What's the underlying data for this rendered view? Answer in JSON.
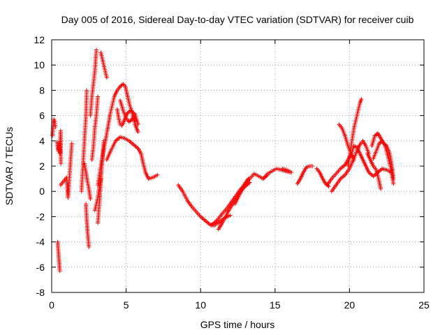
{
  "chart_data": {
    "type": "scatter",
    "title": "Day 005 of 2016, Sidereal Day-to-day VTEC variation (SDTVAR) for receiver cuib",
    "xlabel": "GPS time / hours",
    "ylabel": "SDTVAR / TECUs",
    "xlim": [
      0,
      25
    ],
    "ylim": [
      -8,
      12
    ],
    "grid": true,
    "marker": "+",
    "color": "#ff0000",
    "xticks": [
      "0",
      "5",
      "10",
      "15",
      "20",
      "25"
    ],
    "yticks": [
      "-8",
      "-6",
      "-4",
      "-2",
      "0",
      "2",
      "4",
      "6",
      "8",
      "10",
      "12"
    ],
    "tracks": [
      [
        [
          0.05,
          4.4
        ],
        [
          0.1,
          5.2
        ],
        [
          0.15,
          5.7
        ],
        [
          0.2,
          5.5
        ],
        [
          0.25,
          5.1
        ]
      ],
      [
        [
          0.35,
          3.9
        ],
        [
          0.4,
          3.5
        ],
        [
          0.45,
          3.2
        ],
        [
          0.5,
          3.8
        ],
        [
          0.55,
          3.0
        ],
        [
          0.6,
          4.8
        ],
        [
          0.62,
          2.2
        ]
      ],
      [
        [
          0.4,
          -4.0
        ],
        [
          0.45,
          -4.8
        ],
        [
          0.5,
          -5.6
        ],
        [
          0.55,
          -6.3
        ]
      ],
      [
        [
          0.6,
          0.5
        ],
        [
          1.0,
          1.1
        ],
        [
          1.05,
          0.3
        ],
        [
          1.1,
          -0.5
        ],
        [
          1.35,
          3.8
        ]
      ],
      [
        [
          2.0,
          0.0
        ],
        [
          2.1,
          2.0
        ],
        [
          2.2,
          4.0
        ],
        [
          2.3,
          6.0
        ],
        [
          2.35,
          8.0
        ]
      ],
      [
        [
          2.3,
          -1.0
        ],
        [
          2.35,
          -2.2
        ],
        [
          2.4,
          -3.0
        ],
        [
          2.45,
          -3.8
        ],
        [
          2.5,
          -4.4
        ]
      ],
      [
        [
          2.2,
          2.2
        ],
        [
          2.3,
          1.5
        ],
        [
          2.4,
          0.8
        ],
        [
          2.5,
          0.2
        ],
        [
          2.6,
          -0.6
        ]
      ],
      [
        [
          2.6,
          6.0
        ],
        [
          2.7,
          7.5
        ],
        [
          2.8,
          8.5
        ],
        [
          2.9,
          9.5
        ],
        [
          3.0,
          11.2
        ]
      ],
      [
        [
          2.7,
          2.5
        ],
        [
          2.8,
          3.5
        ],
        [
          2.9,
          5.0
        ],
        [
          3.0,
          6.0
        ],
        [
          3.1,
          7.5
        ]
      ],
      [
        [
          2.9,
          -1.5
        ],
        [
          3.0,
          -1.0
        ],
        [
          3.1,
          -0.5
        ],
        [
          3.2,
          0.3
        ],
        [
          3.3,
          1.0
        ]
      ],
      [
        [
          3.1,
          -2.5
        ],
        [
          3.2,
          -1.0
        ],
        [
          3.3,
          0.8
        ],
        [
          3.4,
          2.5
        ],
        [
          3.5,
          4.0
        ]
      ],
      [
        [
          3.3,
          11.0
        ],
        [
          3.4,
          10.5
        ],
        [
          3.5,
          10.0
        ],
        [
          3.6,
          9.5
        ],
        [
          3.7,
          9.0
        ]
      ],
      [
        [
          3.1,
          0.5
        ],
        [
          3.3,
          2.0
        ],
        [
          3.5,
          3.3
        ],
        [
          3.7,
          4.6
        ],
        [
          3.9,
          5.9
        ]
      ],
      [
        [
          3.9,
          6.0
        ],
        [
          4.1,
          7.0
        ],
        [
          4.2,
          7.5
        ],
        [
          4.4,
          8.0
        ],
        [
          4.6,
          8.3
        ],
        [
          4.8,
          8.5
        ],
        [
          4.95,
          8.3
        ],
        [
          5.1,
          7.5
        ],
        [
          5.25,
          6.8
        ],
        [
          5.4,
          6.3
        ],
        [
          5.5,
          5.8
        ],
        [
          5.6,
          5.3
        ],
        [
          5.7,
          5.0
        ],
        [
          5.8,
          4.7
        ]
      ],
      [
        [
          3.7,
          2.5
        ],
        [
          4.0,
          3.3
        ],
        [
          4.3,
          4.0
        ],
        [
          4.6,
          4.3
        ],
        [
          4.9,
          4.2
        ],
        [
          5.2,
          4.0
        ],
        [
          5.5,
          3.7
        ],
        [
          5.8,
          3.4
        ],
        [
          6.0,
          3.0
        ],
        [
          6.15,
          2.2
        ],
        [
          6.3,
          1.5
        ],
        [
          6.5,
          1.0
        ],
        [
          6.8,
          1.1
        ],
        [
          7.1,
          1.3
        ]
      ],
      [
        [
          4.6,
          7.2
        ],
        [
          4.8,
          6.4
        ],
        [
          5.0,
          5.8
        ],
        [
          5.2,
          5.5
        ],
        [
          5.4,
          5.7
        ],
        [
          5.5,
          6.0
        ],
        [
          5.6,
          5.6
        ]
      ],
      [
        [
          4.4,
          6.5
        ],
        [
          4.5,
          5.8
        ],
        [
          4.6,
          5.3
        ],
        [
          4.7,
          5.2
        ],
        [
          4.8,
          5.4
        ],
        [
          4.9,
          5.7
        ],
        [
          5.0,
          6.0
        ],
        [
          5.1,
          6.2
        ],
        [
          5.3,
          6.4
        ],
        [
          5.6,
          6.1
        ],
        [
          5.8,
          5.3
        ]
      ],
      [
        [
          8.5,
          0.5
        ],
        [
          8.8,
          0.0
        ],
        [
          9.1,
          -0.7
        ],
        [
          9.4,
          -1.2
        ],
        [
          9.7,
          -1.6
        ],
        [
          10.0,
          -2.0
        ],
        [
          10.3,
          -2.3
        ],
        [
          10.6,
          -2.6
        ],
        [
          10.9,
          -2.7
        ],
        [
          11.2,
          -2.5
        ],
        [
          11.5,
          -2.2
        ],
        [
          11.8,
          -2.0
        ],
        [
          12.0,
          -1.9
        ]
      ],
      [
        [
          10.7,
          -2.7
        ],
        [
          10.9,
          -2.5
        ],
        [
          11.1,
          -2.3
        ],
        [
          11.3,
          -2.0
        ],
        [
          11.5,
          -1.7
        ],
        [
          11.8,
          -1.3
        ],
        [
          12.1,
          -0.8
        ],
        [
          12.4,
          -0.3
        ],
        [
          12.7,
          0.2
        ],
        [
          13.0,
          0.5
        ],
        [
          13.3,
          1.0
        ],
        [
          13.6,
          1.4
        ],
        [
          13.9,
          1.2
        ],
        [
          14.2,
          1.0
        ],
        [
          14.5,
          1.3
        ]
      ],
      [
        [
          11.2,
          -3.0
        ],
        [
          11.5,
          -2.4
        ],
        [
          11.8,
          -1.7
        ],
        [
          12.1,
          -1.1
        ],
        [
          12.4,
          -0.6
        ],
        [
          12.7,
          0.0
        ],
        [
          13.0,
          0.4
        ],
        [
          13.3,
          0.7
        ]
      ],
      [
        [
          12.3,
          -1.0
        ],
        [
          12.6,
          -0.3
        ],
        [
          12.9,
          0.5
        ],
        [
          13.2,
          1.0
        ]
      ],
      [
        [
          14.2,
          1.0
        ],
        [
          14.5,
          1.4
        ],
        [
          14.8,
          1.6
        ],
        [
          15.1,
          1.8
        ],
        [
          15.4,
          1.7
        ],
        [
          15.7,
          1.6
        ],
        [
          16.0,
          1.5
        ]
      ],
      [
        [
          15.5,
          1.8
        ],
        [
          15.8,
          1.7
        ],
        [
          16.1,
          1.5
        ]
      ],
      [
        [
          16.5,
          0.6
        ],
        [
          16.7,
          1.0
        ],
        [
          16.9,
          1.5
        ],
        [
          17.1,
          1.9
        ],
        [
          17.3,
          2.0
        ],
        [
          17.5,
          2.0
        ]
      ],
      [
        [
          17.8,
          1.8
        ],
        [
          18.0,
          1.5
        ],
        [
          18.2,
          1.0
        ],
        [
          18.4,
          0.6
        ],
        [
          18.6,
          0.4
        ]
      ],
      [
        [
          18.5,
          0.5
        ],
        [
          18.8,
          1.0
        ],
        [
          19.1,
          1.4
        ],
        [
          19.4,
          1.8
        ],
        [
          19.7,
          2.1
        ],
        [
          19.9,
          2.5
        ],
        [
          20.1,
          2.9
        ],
        [
          20.3,
          3.6
        ],
        [
          20.5,
          3.5
        ],
        [
          20.7,
          3.0
        ],
        [
          20.9,
          2.5
        ],
        [
          21.1,
          2.0
        ],
        [
          21.3,
          1.5
        ],
        [
          21.6,
          1.2
        ],
        [
          21.9,
          1.5
        ],
        [
          22.2,
          1.8
        ],
        [
          22.5,
          1.7
        ],
        [
          22.8,
          1.5
        ]
      ],
      [
        [
          18.8,
          0.0
        ],
        [
          19.1,
          0.5
        ],
        [
          19.4,
          1.0
        ],
        [
          19.7,
          1.3
        ],
        [
          20.0,
          1.8
        ],
        [
          20.3,
          2.6
        ],
        [
          20.5,
          3.2
        ],
        [
          20.7,
          3.7
        ],
        [
          20.9,
          4.0
        ],
        [
          21.1,
          3.6
        ],
        [
          21.3,
          3.0
        ]
      ],
      [
        [
          19.9,
          2.0
        ],
        [
          20.1,
          3.5
        ],
        [
          20.3,
          5.0
        ],
        [
          20.5,
          6.0
        ],
        [
          20.7,
          7.0
        ],
        [
          20.8,
          7.3
        ]
      ],
      [
        [
          19.3,
          5.3
        ],
        [
          19.5,
          5.0
        ],
        [
          19.7,
          4.4
        ],
        [
          19.9,
          3.6
        ],
        [
          20.1,
          3.0
        ],
        [
          20.3,
          2.5
        ]
      ],
      [
        [
          21.2,
          3.0
        ],
        [
          21.4,
          2.5
        ],
        [
          21.6,
          2.0
        ],
        [
          21.8,
          1.7
        ],
        [
          21.95,
          1.0
        ],
        [
          22.1,
          0.2
        ]
      ],
      [
        [
          21.5,
          3.6
        ],
        [
          21.7,
          4.4
        ],
        [
          21.9,
          4.6
        ],
        [
          22.1,
          4.2
        ],
        [
          22.3,
          3.8
        ],
        [
          22.5,
          3.6
        ],
        [
          22.7,
          3.0
        ],
        [
          22.85,
          2.0
        ],
        [
          22.95,
          1.0
        ]
      ],
      [
        [
          21.6,
          2.6
        ],
        [
          21.8,
          3.2
        ],
        [
          22.0,
          3.8
        ],
        [
          22.2,
          4.0
        ],
        [
          22.4,
          3.6
        ],
        [
          22.6,
          2.7
        ],
        [
          22.8,
          1.7
        ],
        [
          22.95,
          0.6
        ]
      ]
    ]
  }
}
